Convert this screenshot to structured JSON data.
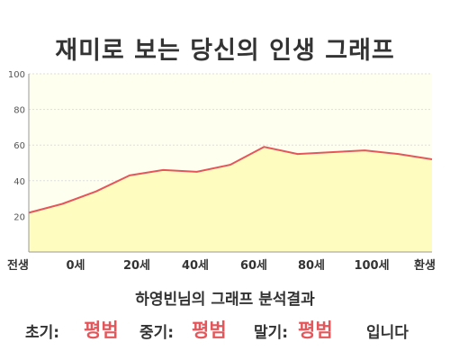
{
  "title": "재미로 보는 당신의 인생 그래프",
  "subtitle": "하영빈님의 그래프 분석결과",
  "result": {
    "early_label": "초기:",
    "early_value": "평범",
    "middle_label": "중기:",
    "middle_value": "평범",
    "late_label": "말기:",
    "late_value": "평범",
    "suffix": "입니다"
  },
  "colors": {
    "line": "#e5565a",
    "fill": "#fffcc0",
    "plot_background": "#fffff0",
    "grid": "#dddddd",
    "text": "#333333"
  },
  "chart_data": {
    "type": "area",
    "x": [
      0,
      10,
      20,
      30,
      40,
      50,
      60,
      70,
      80,
      90,
      100,
      110,
      120
    ],
    "y": [
      22,
      27,
      34,
      43,
      46,
      45,
      49,
      59,
      55,
      56,
      57,
      55,
      52
    ],
    "xtick_labels": [
      "전생",
      "0세",
      "20세",
      "40세",
      "60세",
      "80세",
      "100세",
      "환생"
    ],
    "ytick_labels": [
      "20",
      "40",
      "60",
      "80",
      "100"
    ],
    "ylim": [
      0,
      100
    ],
    "grid": true,
    "legend": "none"
  }
}
